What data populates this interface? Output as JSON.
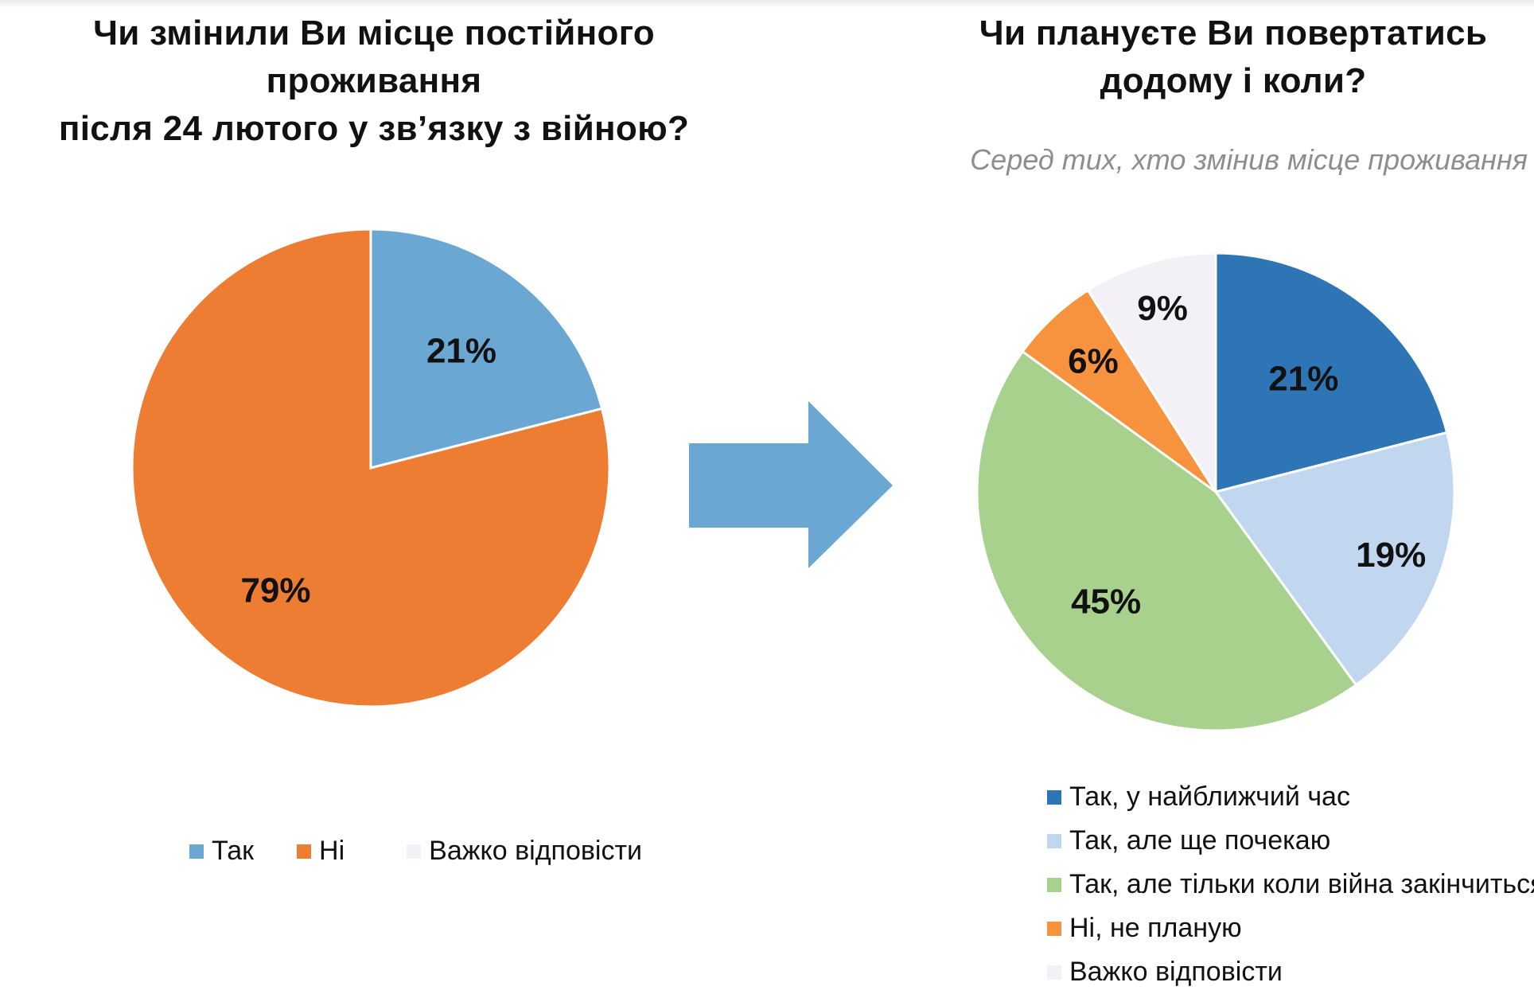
{
  "left_chart": {
    "title_lines": [
      "Чи змінили Ви місце постійного проживання",
      "після  24 лютого у зв’язку з війною?"
    ],
    "chart_data": {
      "type": "pie",
      "title": "Чи змінили Ви місце постійного проживання після  24 лютого у зв’язку з війною?",
      "categories": [
        "Так",
        "Ні",
        "Важко відповісти"
      ],
      "values": [
        21,
        79,
        0
      ],
      "data_labels": [
        "21%",
        "79%",
        ""
      ],
      "colors": [
        "#6aa7d3",
        "#ee7d34",
        "#f3f1f5"
      ],
      "legend_position": "bottom",
      "start": "top, clockwise"
    }
  },
  "right_chart": {
    "title_lines": [
      "Чи плануєте Ви повертатись",
      "додому і коли?"
    ],
    "subtitle": "Серед тих, хто змінив місце проживання",
    "chart_data": {
      "type": "pie",
      "title": "Чи плануєте Ви повертатись додому і коли?",
      "subtitle": "Серед тих, хто змінив місце проживання",
      "categories": [
        "Так, у найближчий час",
        "Так, але ще почекаю",
        "Так, але тільки коли війна закінчиться",
        "Ні, не планую",
        "Важко відповісти"
      ],
      "values": [
        21,
        19,
        45,
        6,
        9
      ],
      "data_labels": [
        "21%",
        "19%",
        "45%",
        "6%",
        "9%"
      ],
      "colors": [
        "#2e75b6",
        "#c0d7ef",
        "#a9d18e",
        "#f7923f",
        "#f3f1f5"
      ],
      "legend_position": "bottom",
      "start": "top, clockwise"
    }
  },
  "arrow": {
    "icon": "right-arrow-icon",
    "color": "#6aa7d3"
  }
}
